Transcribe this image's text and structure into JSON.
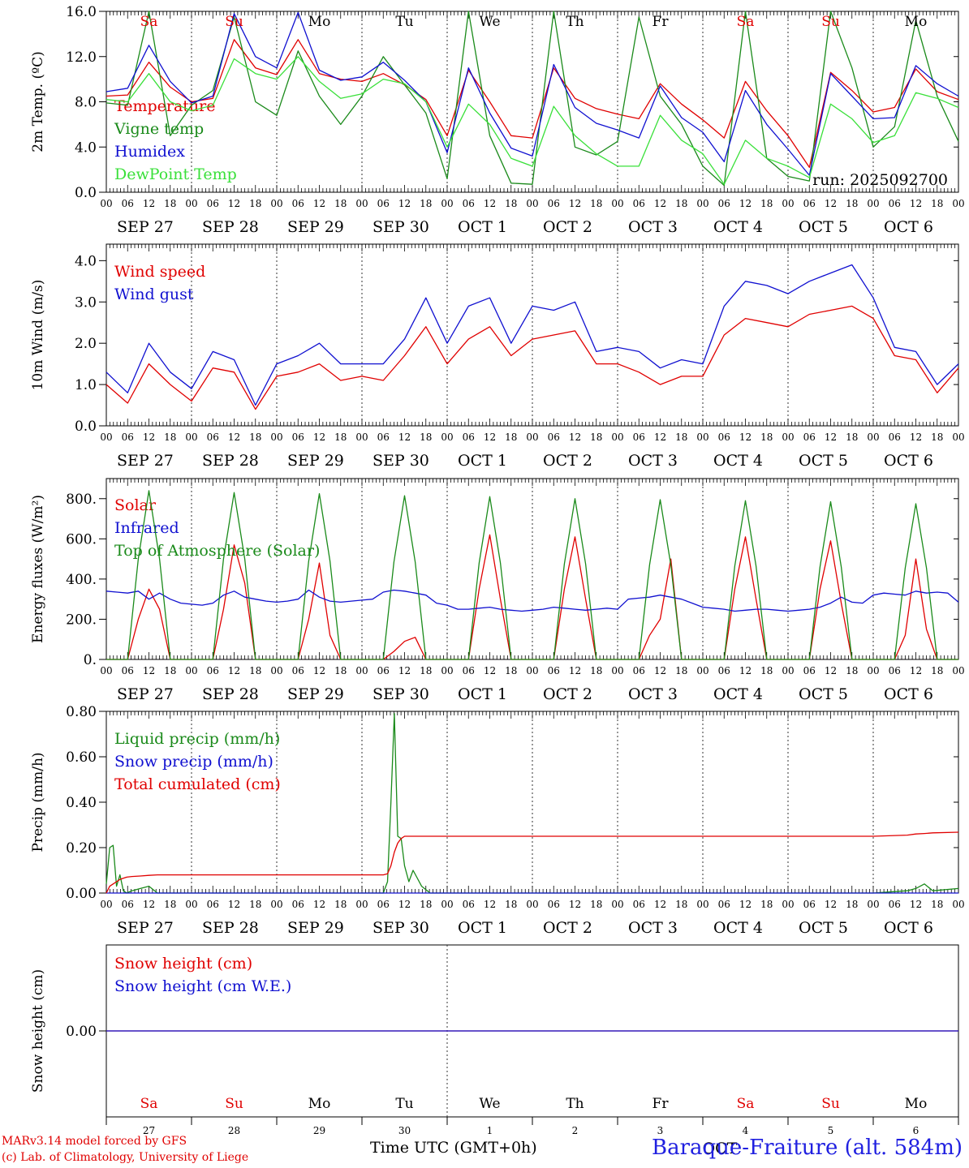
{
  "run_label": "run: 2025092700",
  "time_axis": {
    "hour_ticks": [
      "00",
      "06",
      "12",
      "18"
    ],
    "date_labels": [
      "SEP 27",
      "SEP 28",
      "SEP 29",
      "SEP 30",
      "OCT 1",
      "OCT 2",
      "OCT 3",
      "OCT 4",
      "OCT 5",
      "OCT 6"
    ],
    "weekdays": [
      "Sa",
      "Su",
      "Mo",
      "Tu",
      "We",
      "Th",
      "Fr",
      "Sa",
      "Su",
      "Mo"
    ],
    "weekday_colors": [
      "#e00000",
      "#e00000",
      "#000000",
      "#000000",
      "#000000",
      "#000000",
      "#000000",
      "#e00000",
      "#e00000",
      "#000000"
    ],
    "day_numbers": [
      "27",
      "28",
      "29",
      "30",
      "1",
      "2",
      "3",
      "4",
      "5",
      "6"
    ],
    "month_label": "OCT",
    "title": "Time UTC (GMT+0h)"
  },
  "footer": {
    "credit_line1": "MARv3.14 model forced by GFS",
    "credit_line2": "(c) Lab. of Climatology, University of Liege",
    "station": "Baraque-Fraiture (alt. 584m)"
  },
  "colors": {
    "red": "#e00000",
    "green": "#1a8a1a",
    "blue": "#1010d0",
    "lightgreen": "#3ae03a",
    "black": "#000000"
  },
  "chart_data": [
    {
      "type": "line",
      "title": "2m Temperature",
      "ylabel": "2m Temp. (ºC)",
      "ylim": [
        0,
        16
      ],
      "yticks": [
        "0.0",
        "4.0",
        "8.0",
        "12.0",
        "16.0"
      ],
      "x_days": [
        0,
        0.25,
        0.5,
        0.75,
        1,
        1.25,
        1.5,
        1.75,
        2,
        2.25,
        2.5,
        2.75,
        3,
        3.25,
        3.5,
        3.75,
        4,
        4.25,
        4.5,
        4.75,
        5,
        5.25,
        5.5,
        5.75,
        6,
        6.25,
        6.5,
        6.75,
        7,
        7.25,
        7.5,
        7.75,
        8,
        8.25,
        8.5,
        8.75,
        9,
        9.25,
        9.5,
        9.75,
        10
      ],
      "series": [
        {
          "name": "Temperature",
          "color": "red",
          "values": [
            8.5,
            8.6,
            11.5,
            9.3,
            8.0,
            8.3,
            13.5,
            11.0,
            10.4,
            13.5,
            10.5,
            10.0,
            9.8,
            10.5,
            9.5,
            8.2,
            5.0,
            10.8,
            8.0,
            5.0,
            4.8,
            11.0,
            8.3,
            7.4,
            6.9,
            6.5,
            9.6,
            7.8,
            6.4,
            4.8,
            9.8,
            7.2,
            5.0,
            2.2,
            10.6,
            9.0,
            7.1,
            7.5,
            10.9,
            8.9,
            8.2
          ]
        },
        {
          "name": "Vigne temp",
          "color": "green",
          "values": [
            7.9,
            7.7,
            16.0,
            5.0,
            7.7,
            9.0,
            15.5,
            8.0,
            6.8,
            12.5,
            8.5,
            6.0,
            8.5,
            12.0,
            9.5,
            7.0,
            1.2,
            16.0,
            5.0,
            0.8,
            0.7,
            16.0,
            4.0,
            3.3,
            4.5,
            15.5,
            8.5,
            6.0,
            2.3,
            0.6,
            16.0,
            3.0,
            1.4,
            1.0,
            16.0,
            11.0,
            4.0,
            5.8,
            15.2,
            8.5,
            4.5
          ]
        },
        {
          "name": "Humidex",
          "color": "blue",
          "values": [
            8.9,
            9.2,
            13.0,
            9.8,
            7.9,
            8.5,
            15.8,
            12.0,
            11.0,
            15.9,
            10.8,
            9.9,
            10.2,
            11.5,
            9.9,
            8.0,
            3.5,
            11.0,
            7.0,
            3.9,
            3.2,
            11.3,
            7.5,
            6.1,
            5.5,
            4.8,
            9.4,
            6.6,
            5.3,
            2.7,
            9.0,
            6.0,
            3.8,
            1.5,
            10.5,
            8.5,
            6.5,
            6.6,
            11.2,
            9.6,
            8.5
          ]
        },
        {
          "name": "DewPoint Temp",
          "color": "lightgreen",
          "values": [
            8.2,
            8.0,
            10.5,
            8.0,
            7.2,
            7.7,
            11.8,
            10.5,
            10.0,
            12.0,
            9.8,
            8.3,
            8.7,
            10.0,
            9.6,
            8.0,
            4.0,
            7.8,
            6.0,
            3.0,
            2.3,
            7.6,
            5.0,
            3.4,
            2.3,
            2.3,
            6.8,
            4.6,
            3.4,
            0.7,
            4.6,
            3.0,
            2.3,
            1.3,
            7.8,
            6.5,
            4.4,
            5.0,
            8.8,
            8.3,
            7.5
          ]
        }
      ]
    },
    {
      "type": "line",
      "title": "10m Wind",
      "ylabel": "10m Wind (m/s)",
      "ylim": [
        0,
        4.4
      ],
      "yticks": [
        "0.0",
        "1.0",
        "2.0",
        "3.0",
        "4.0"
      ],
      "x_days": [
        0,
        0.25,
        0.5,
        0.75,
        1,
        1.25,
        1.5,
        1.75,
        2,
        2.25,
        2.5,
        2.75,
        3,
        3.25,
        3.5,
        3.75,
        4,
        4.25,
        4.5,
        4.75,
        5,
        5.25,
        5.5,
        5.75,
        6,
        6.25,
        6.5,
        6.75,
        7,
        7.25,
        7.5,
        7.75,
        8,
        8.25,
        8.5,
        8.75,
        9,
        9.25,
        9.5,
        9.75,
        10
      ],
      "series": [
        {
          "name": "Wind speed",
          "color": "red",
          "values": [
            1.0,
            0.55,
            1.5,
            1.0,
            0.6,
            1.4,
            1.3,
            0.4,
            1.2,
            1.3,
            1.5,
            1.1,
            1.2,
            1.1,
            1.7,
            2.4,
            1.5,
            2.1,
            2.4,
            1.7,
            2.1,
            2.2,
            2.3,
            1.5,
            1.5,
            1.3,
            1.0,
            1.2,
            1.2,
            2.2,
            2.6,
            2.5,
            2.4,
            2.7,
            2.8,
            2.9,
            2.6,
            1.7,
            1.6,
            0.8,
            1.4
          ]
        },
        {
          "name": "Wind gust",
          "color": "blue",
          "values": [
            1.3,
            0.8,
            2.0,
            1.3,
            0.9,
            1.8,
            1.6,
            0.5,
            1.5,
            1.7,
            2.0,
            1.5,
            1.5,
            1.5,
            2.1,
            3.1,
            2.0,
            2.9,
            3.1,
            2.0,
            2.9,
            2.8,
            3.0,
            1.8,
            1.9,
            1.8,
            1.4,
            1.6,
            1.5,
            2.9,
            3.5,
            3.4,
            3.2,
            3.5,
            3.7,
            3.9,
            3.1,
            1.9,
            1.8,
            1.0,
            1.5
          ]
        }
      ]
    },
    {
      "type": "line",
      "title": "Energy fluxes",
      "ylabel": "Energy fluxes (W/m²)",
      "ylim": [
        0,
        900
      ],
      "yticks": [
        "0.",
        "200.",
        "400.",
        "600.",
        "800."
      ],
      "x_days": [
        0,
        0.125,
        0.25,
        0.375,
        0.5,
        0.625,
        0.75,
        0.875,
        1,
        1.125,
        1.25,
        1.375,
        1.5,
        1.625,
        1.75,
        1.875,
        2,
        2.125,
        2.25,
        2.375,
        2.5,
        2.625,
        2.75,
        2.875,
        3,
        3.125,
        3.25,
        3.375,
        3.5,
        3.625,
        3.75,
        3.875,
        4,
        4.125,
        4.25,
        4.375,
        4.5,
        4.625,
        4.75,
        4.875,
        5,
        5.125,
        5.25,
        5.375,
        5.5,
        5.625,
        5.75,
        5.875,
        6,
        6.125,
        6.25,
        6.375,
        6.5,
        6.625,
        6.75,
        6.875,
        7,
        7.125,
        7.25,
        7.375,
        7.5,
        7.625,
        7.75,
        7.875,
        8,
        8.125,
        8.25,
        8.375,
        8.5,
        8.625,
        8.75,
        8.875,
        9,
        9.125,
        9.25,
        9.375,
        9.5,
        9.625,
        9.75,
        9.875,
        10
      ],
      "series": [
        {
          "name": "Solar",
          "color": "red",
          "values": [
            0,
            0,
            0,
            200,
            350,
            250,
            0,
            0,
            0,
            0,
            0,
            250,
            570,
            380,
            0,
            0,
            0,
            0,
            0,
            200,
            480,
            120,
            0,
            0,
            0,
            0,
            0,
            40,
            90,
            110,
            0,
            0,
            0,
            0,
            0,
            350,
            620,
            300,
            0,
            0,
            0,
            0,
            0,
            350,
            610,
            300,
            0,
            0,
            0,
            0,
            0,
            120,
            200,
            500,
            0,
            0,
            0,
            0,
            0,
            350,
            610,
            300,
            0,
            0,
            0,
            0,
            0,
            350,
            590,
            280,
            0,
            0,
            0,
            0,
            0,
            120,
            500,
            150,
            0,
            0,
            0
          ]
        },
        {
          "name": "Infrared",
          "color": "blue",
          "values": [
            340,
            335,
            330,
            340,
            300,
            330,
            300,
            280,
            275,
            270,
            280,
            320,
            340,
            310,
            300,
            290,
            285,
            290,
            300,
            345,
            310,
            290,
            285,
            290,
            295,
            300,
            335,
            345,
            340,
            330,
            320,
            280,
            270,
            250,
            250,
            255,
            260,
            250,
            245,
            240,
            245,
            250,
            260,
            255,
            250,
            245,
            250,
            255,
            250,
            300,
            305,
            310,
            320,
            310,
            300,
            280,
            260,
            255,
            250,
            240,
            245,
            250,
            250,
            245,
            240,
            245,
            250,
            260,
            280,
            310,
            285,
            280,
            320,
            330,
            325,
            320,
            340,
            330,
            335,
            330,
            285
          ]
        },
        {
          "name": "Top of Atmosphere (Solar)",
          "color": "green",
          "values": [
            0,
            0,
            0,
            500,
            840,
            500,
            0,
            0,
            0,
            0,
            0,
            500,
            830,
            500,
            0,
            0,
            0,
            0,
            0,
            490,
            825,
            490,
            0,
            0,
            0,
            0,
            0,
            485,
            815,
            485,
            0,
            0,
            0,
            0,
            0,
            480,
            810,
            480,
            0,
            0,
            0,
            0,
            0,
            475,
            800,
            475,
            0,
            0,
            0,
            0,
            0,
            470,
            795,
            470,
            0,
            0,
            0,
            0,
            0,
            465,
            790,
            465,
            0,
            0,
            0,
            0,
            0,
            460,
            785,
            460,
            0,
            0,
            0,
            0,
            0,
            455,
            775,
            455,
            0,
            0,
            0
          ]
        }
      ]
    },
    {
      "type": "line",
      "title": "Precipitation",
      "ylabel": "Precip (mm/h)",
      "ylim": [
        0,
        0.8
      ],
      "yticks": [
        "0.00",
        "0.20",
        "0.40",
        "0.60",
        "0.80"
      ],
      "x_days": [
        0,
        0.04,
        0.08,
        0.12,
        0.16,
        0.2,
        0.24,
        0.3,
        0.4,
        0.5,
        0.6,
        0.7,
        1,
        2,
        3,
        3.25,
        3.3,
        3.34,
        3.38,
        3.42,
        3.46,
        3.5,
        3.55,
        3.6,
        3.7,
        3.8,
        4,
        5,
        6,
        7,
        8,
        9,
        9.4,
        9.5,
        9.6,
        9.7,
        10
      ],
      "series": [
        {
          "name": "Liquid precip (mm/h)",
          "color": "green",
          "values": [
            0.04,
            0.2,
            0.21,
            0.03,
            0.08,
            0.01,
            0.0,
            0.01,
            0.02,
            0.03,
            0.0,
            0.0,
            0.0,
            0.0,
            0.0,
            0.0,
            0.05,
            0.4,
            0.79,
            0.25,
            0.24,
            0.12,
            0.05,
            0.1,
            0.03,
            0.0,
            0.0,
            0.0,
            0.0,
            0.0,
            0.0,
            0.0,
            0.01,
            0.02,
            0.04,
            0.01,
            0.02
          ]
        },
        {
          "name": "Snow precip (mm/h)",
          "color": "blue",
          "values": [
            0,
            0,
            0,
            0,
            0,
            0,
            0,
            0,
            0,
            0,
            0,
            0,
            0,
            0,
            0,
            0,
            0,
            0,
            0,
            0,
            0,
            0,
            0,
            0,
            0,
            0,
            0,
            0,
            0,
            0,
            0,
            0,
            0,
            0,
            0,
            0,
            0
          ]
        },
        {
          "name": "Total cumulated (cm)",
          "color": "red",
          "values": [
            0.0,
            0.03,
            0.04,
            0.05,
            0.06,
            0.065,
            0.07,
            0.073,
            0.075,
            0.078,
            0.08,
            0.08,
            0.08,
            0.08,
            0.08,
            0.08,
            0.085,
            0.12,
            0.18,
            0.22,
            0.24,
            0.25,
            0.25,
            0.25,
            0.25,
            0.25,
            0.25,
            0.25,
            0.25,
            0.25,
            0.25,
            0.25,
            0.255,
            0.26,
            0.262,
            0.265,
            0.268
          ]
        }
      ]
    },
    {
      "type": "line",
      "title": "Snow height",
      "ylabel": "Snow height (cm)",
      "ylim": [
        -1,
        1
      ],
      "yticks": [
        "0.00"
      ],
      "x_days": [
        0,
        10
      ],
      "series": [
        {
          "name": "Snow height (cm)",
          "color": "red",
          "values": [
            0,
            0
          ]
        },
        {
          "name": "Snow height (cm W.E.)",
          "color": "blue",
          "values": [
            0,
            0
          ]
        }
      ]
    }
  ]
}
